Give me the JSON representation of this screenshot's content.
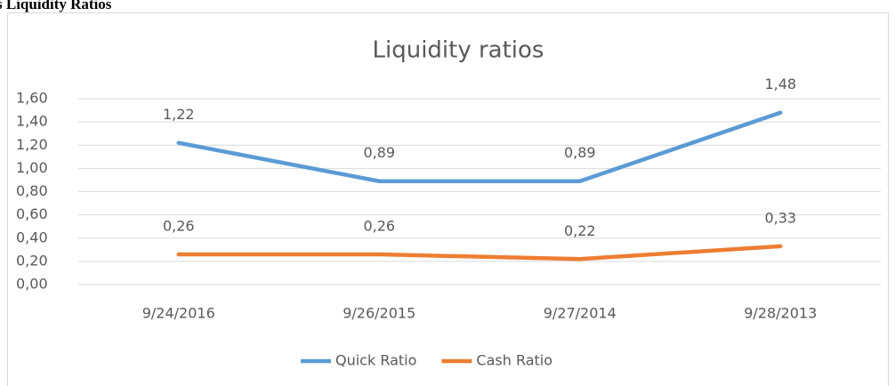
{
  "heading": "s Liquidity Ratios",
  "chart_data": {
    "type": "line",
    "title": "Liquidity ratios",
    "categories": [
      "9/24/2016",
      "9/26/2015",
      "9/27/2014",
      "9/28/2013"
    ],
    "series": [
      {
        "name": "Quick Ratio",
        "color": "#5b9bd5",
        "values": [
          1.22,
          0.89,
          0.89,
          1.48
        ],
        "value_labels": [
          "1,22",
          "0,89",
          "0,89",
          "1,48"
        ]
      },
      {
        "name": "Cash Ratio",
        "color": "#ed7d31",
        "values": [
          0.26,
          0.26,
          0.22,
          0.33
        ],
        "value_labels": [
          "0,26",
          "0,26",
          "0,22",
          "0,33"
        ]
      }
    ],
    "ylim": [
      0,
      1.6
    ],
    "yticks": [
      {
        "value": 0,
        "label": "0,00"
      },
      {
        "value": 0.2,
        "label": "0,20"
      },
      {
        "value": 0.4,
        "label": "0,40"
      },
      {
        "value": 0.6,
        "label": "0,60"
      },
      {
        "value": 0.8,
        "label": "0,80"
      },
      {
        "value": 1.0,
        "label": "1,00"
      },
      {
        "value": 1.2,
        "label": "1,20"
      },
      {
        "value": 1.4,
        "label": "1,40"
      },
      {
        "value": 1.6,
        "label": "1,60"
      }
    ],
    "grid": true,
    "legend": "bottom"
  }
}
